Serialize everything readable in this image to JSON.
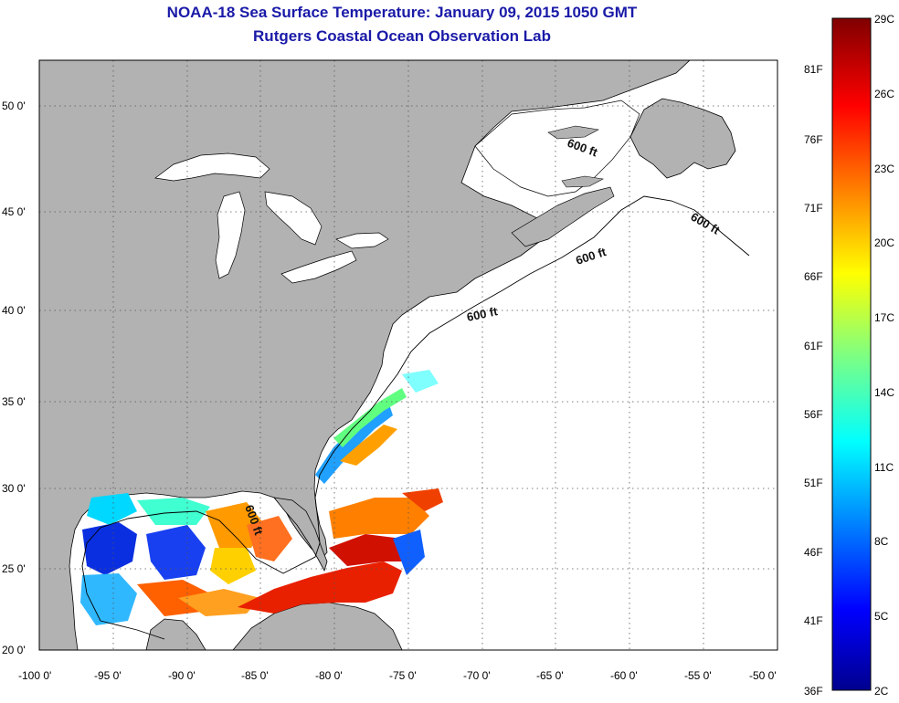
{
  "header": {
    "title": "NOAA-18 Sea Surface Temperature:  January 09, 2015 1050 GMT",
    "subtitle": "Rutgers Coastal Ocean Observation Lab"
  },
  "map": {
    "lon_range": [
      -100,
      -50
    ],
    "lat_range": [
      20,
      52.5
    ],
    "lon_ticks": [
      "-100 0'",
      "-95 0'",
      "-90 0'",
      "-85 0'",
      "-80 0'",
      "-75 0'",
      "-70 0'",
      "-65 0'",
      "-60 0'",
      "-55 0'",
      "-50 0'"
    ],
    "lat_ticks": [
      "20 0'",
      "25 0'",
      "30 0'",
      "35 0'",
      "40 0'",
      "45 0'",
      "50 0'"
    ],
    "land_color": "#b2b2b2",
    "contour_label": "600 ft",
    "grid": "dotted"
  },
  "colorbar": {
    "celsius_labels": [
      "29C",
      "26C",
      "23C",
      "20C",
      "17C",
      "14C",
      "11C",
      "8C",
      "5C",
      "2C"
    ],
    "fahrenheit_labels": [
      "81F",
      "76F",
      "71F",
      "66F",
      "61F",
      "56F",
      "51F",
      "46F",
      "41F",
      "36F"
    ],
    "colormap": "jet",
    "range_c": [
      2,
      29
    ]
  }
}
